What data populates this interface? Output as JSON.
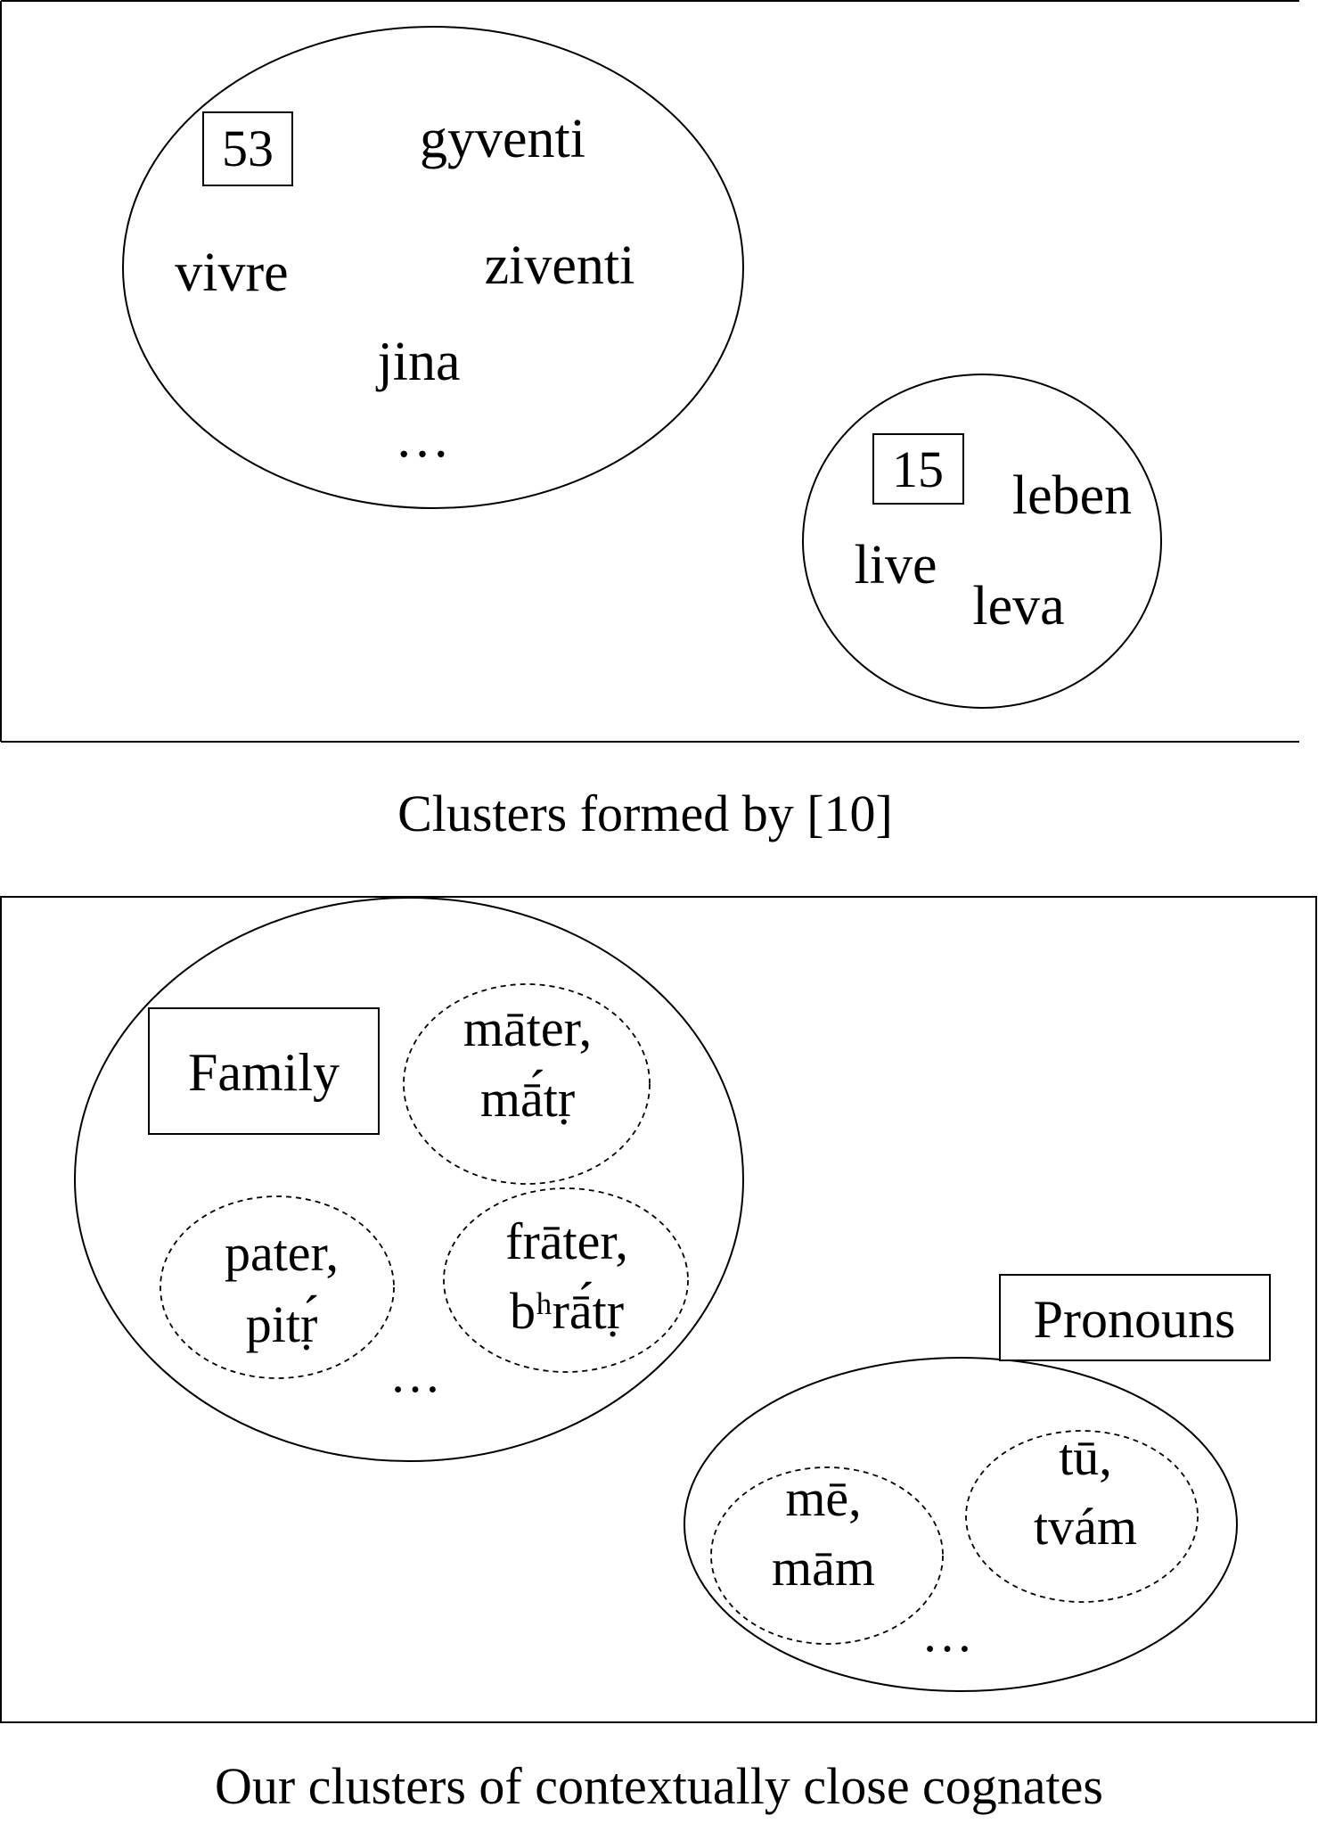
{
  "top_panel": {
    "caption": "Clusters formed by [10]",
    "cluster_large": {
      "id_label": "53",
      "words": [
        "gyventi",
        "vivre",
        "ziventi",
        "jina",
        "…"
      ]
    },
    "cluster_small": {
      "id_label": "15",
      "words": [
        "leben",
        "live",
        "leva"
      ]
    }
  },
  "bottom_panel": {
    "caption": "Our clusters of contextually close cognates",
    "family": {
      "label": "Family",
      "mater": [
        "māter,",
        "mā́tṛ"
      ],
      "pater": [
        "pater,",
        "pitṛ́"
      ],
      "frater": [
        "frāter,",
        "bʰrā́tṛ"
      ],
      "ellipsis": "…"
    },
    "pronouns": {
      "label": "Pronouns",
      "me": [
        "mē,",
        "mām"
      ],
      "tu": [
        "tū,",
        "tvám"
      ],
      "ellipsis": "…"
    }
  }
}
